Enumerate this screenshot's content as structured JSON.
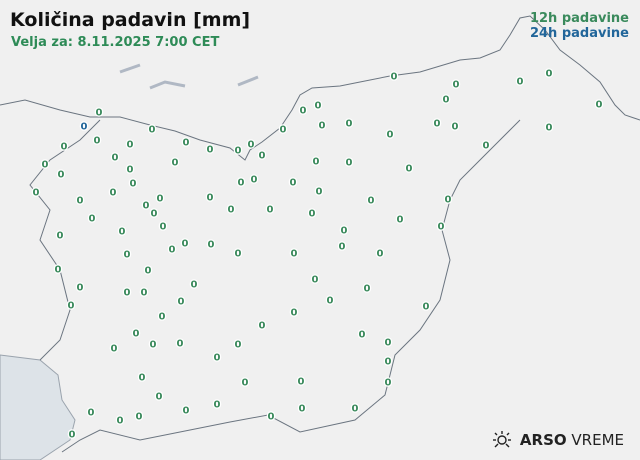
{
  "title": "Količina padavin [mm]",
  "subtitle": "Velja za: 8.11.2025 7:00 CET",
  "legend": {
    "label_12h": "12h padavine",
    "label_24h": "24h padavine",
    "color_12h": "#3a8a5c",
    "color_24h": "#22669a"
  },
  "logo": {
    "bold": "ARSO",
    "light": "VREME",
    "icon": "weather-sun-icon"
  },
  "stations": {
    "values_12h": [
      "0",
      "0",
      "0",
      "0",
      "0",
      "0",
      "0",
      "0",
      "0",
      "0",
      "0",
      "0",
      "0",
      "0",
      "0",
      "0",
      "0",
      "0",
      "0",
      "0",
      "0",
      "0",
      "0",
      "0",
      "0",
      "0",
      "0",
      "0",
      "0",
      "0",
      "0",
      "0",
      "0",
      "0",
      "0",
      "0",
      "0",
      "0",
      "0",
      "0",
      "0",
      "0",
      "0",
      "0",
      "0",
      "0",
      "0",
      "0",
      "0",
      "0",
      "0",
      "0",
      "0",
      "0",
      "0",
      "0",
      "0",
      "0",
      "0",
      "0",
      "0",
      "0",
      "0",
      "0",
      "0",
      "0",
      "0",
      "0",
      "0",
      "0",
      "0",
      "0",
      "0",
      "0",
      "0",
      "0",
      "0",
      "0",
      "0",
      "0",
      "0",
      "0",
      "0",
      "0",
      "0",
      "0",
      "0",
      "0",
      "0",
      "0",
      "0",
      "0",
      "0",
      "0",
      "0",
      "0",
      "0",
      "0",
      "0",
      "0",
      "0",
      "0",
      "0",
      "0"
    ],
    "values_24h": [
      "0"
    ]
  }
}
